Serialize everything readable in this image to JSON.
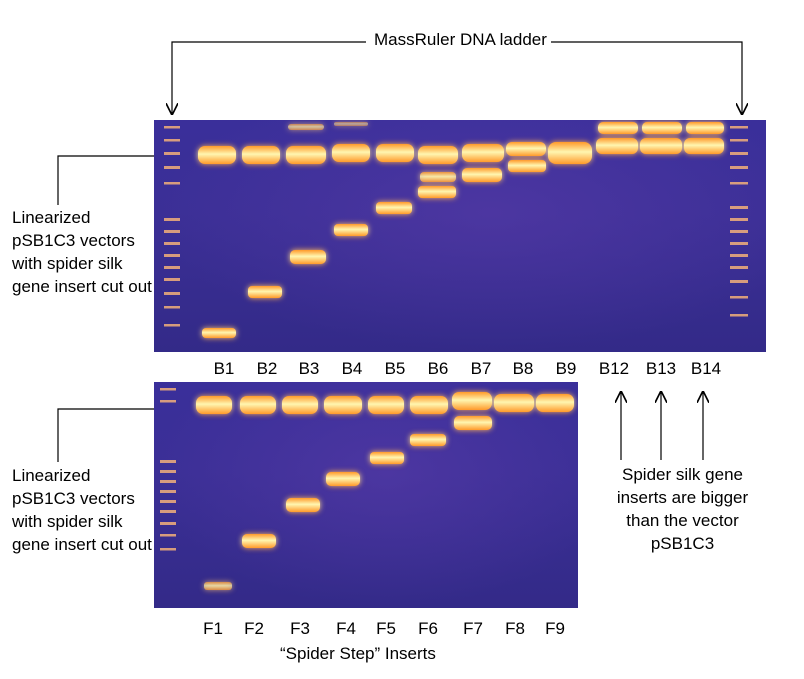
{
  "ladder_label": "MassRuler DNA ladder",
  "left_annotation_top": "Linearized pSB1C3 vectors with spider silk gene insert cut out",
  "left_annotation_bottom": "Linearized pSB1C3 vectors with spider silk gene insert cut out",
  "right_annotation": "Spider silk gene inserts are bigger than the vector pSB1C3",
  "bottom_title": "“Spider Step” Inserts",
  "top_gel": {
    "lanes": [
      "B1",
      "B2",
      "B3",
      "B4",
      "B5",
      "B6",
      "B7",
      "B8",
      "B9",
      "B12",
      "B13",
      "B14"
    ]
  },
  "bottom_gel": {
    "lanes": [
      "F1",
      "F2",
      "F3",
      "F4",
      "F5",
      "F6",
      "F7",
      "F8",
      "F9"
    ]
  },
  "colors": {
    "gel_background": "#3a2f9a",
    "band_core": "#fff6b0",
    "band_glow": "#ff9a2a",
    "ladder_band": "#f3b07a",
    "annotation_line": "#000000"
  },
  "icons": {
    "arrow": "arrow-icon"
  }
}
